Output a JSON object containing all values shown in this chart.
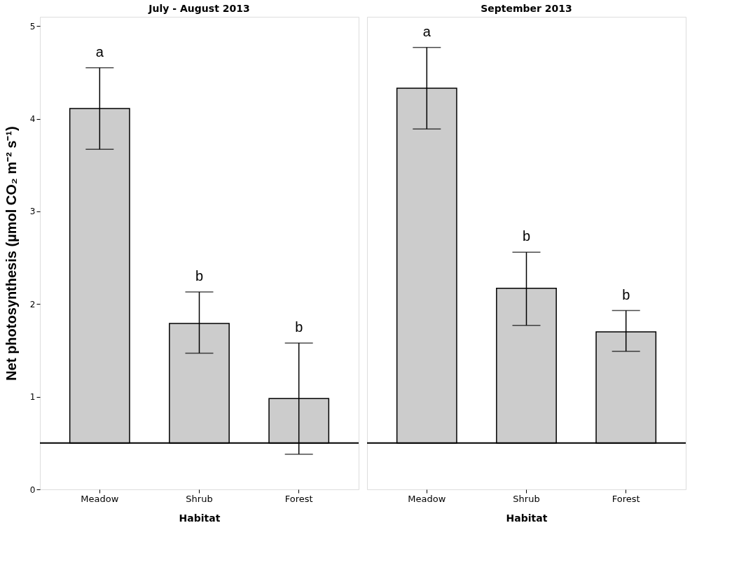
{
  "chart_data": [
    {
      "type": "bar",
      "title": "July - August 2013",
      "xlabel": "Habitat",
      "ylabel": "Net photosynthesis (µmol CO₂ m⁻² s⁻¹)",
      "categories": [
        "Meadow",
        "Shrub",
        "Forest"
      ],
      "base": [
        0.5,
        0.5,
        0.5
      ],
      "values": [
        3.61,
        1.29,
        0.48
      ],
      "color": "#cccccc",
      "errors": [
        [
          3.67,
          4.55
        ],
        [
          1.47,
          2.13
        ],
        [
          0.38,
          1.58
        ]
      ],
      "ylim": [
        0,
        5.1
      ],
      "yticks": [
        0,
        1,
        2,
        3,
        4,
        5
      ],
      "grid": false,
      "ref_lines": [
        {
          "axis": "y",
          "value": 0.5,
          "color": "#000000"
        }
      ],
      "annotations": [
        "a",
        "b",
        "b"
      ]
    },
    {
      "type": "bar",
      "title": "September 2013",
      "xlabel": "Habitat",
      "categories": [
        "Meadow",
        "Shrub",
        "Forest"
      ],
      "base": [
        0.5,
        0.5,
        0.5
      ],
      "values": [
        3.83,
        1.67,
        1.2
      ],
      "color": "#cccccc",
      "errors": [
        [
          3.89,
          4.77
        ],
        [
          1.77,
          2.56
        ],
        [
          1.49,
          1.93
        ]
      ],
      "ylim": [
        0,
        5.1
      ],
      "yticks": [
        0,
        1,
        2,
        3,
        4,
        5
      ],
      "grid": false,
      "tick_labels": "x",
      "ref_lines": [
        {
          "axis": "y",
          "value": 0.5,
          "color": "#000000"
        }
      ],
      "annotations": [
        "a",
        "b",
        "b"
      ]
    }
  ]
}
